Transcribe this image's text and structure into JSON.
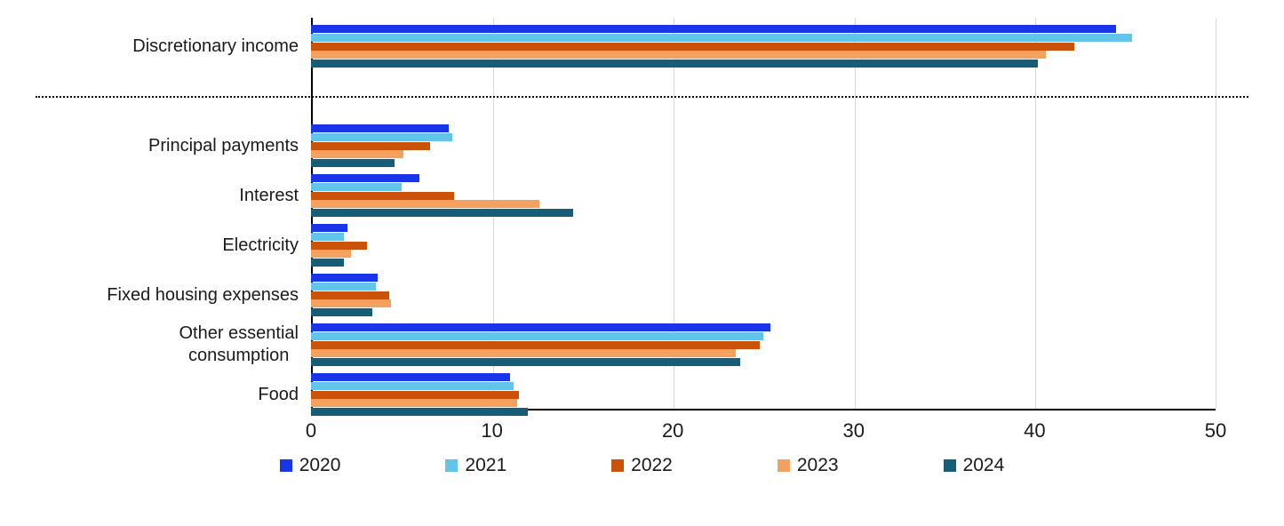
{
  "chart_data": {
    "type": "bar",
    "orientation": "horizontal",
    "title": "",
    "xlabel": "",
    "ylabel": "",
    "xlim": [
      0,
      50
    ],
    "x_ticks": [
      0,
      10,
      20,
      30,
      40,
      50
    ],
    "grid": true,
    "legend_position": "bottom",
    "separator_after_category_index": 0,
    "categories": [
      "Discretionary income",
      "Principal payments",
      "Interest",
      "Electricity",
      "Fixed housing expenses",
      "Other essential\nconsumption",
      "Food"
    ],
    "series": [
      {
        "name": "2020",
        "color": "#1a34e8",
        "values": [
          44.5,
          7.6,
          6.0,
          2.0,
          3.7,
          25.4,
          11.0
        ]
      },
      {
        "name": "2021",
        "color": "#62c4e8",
        "values": [
          45.4,
          7.8,
          5.0,
          1.8,
          3.6,
          25.0,
          11.2
        ]
      },
      {
        "name": "2022",
        "color": "#cb5209",
        "values": [
          42.2,
          6.6,
          7.9,
          3.1,
          4.3,
          24.8,
          11.5
        ]
      },
      {
        "name": "2023",
        "color": "#f2a15e",
        "values": [
          40.6,
          5.1,
          12.6,
          2.2,
          4.4,
          23.5,
          11.4
        ]
      },
      {
        "name": "2024",
        "color": "#175d78",
        "values": [
          40.2,
          4.6,
          14.5,
          1.8,
          3.4,
          23.7,
          12.0
        ]
      }
    ],
    "colors": {
      "axis": "#000000",
      "gridline": "#d8d8d8",
      "text": "#1a1a1a"
    }
  }
}
